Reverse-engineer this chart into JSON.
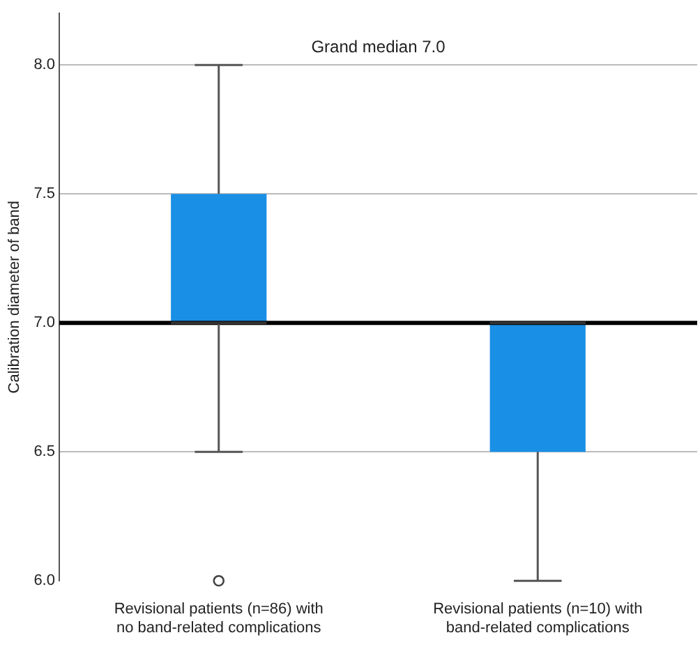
{
  "chart_data": {
    "type": "box",
    "ylabel": "Calibration diameter of band",
    "categories": [
      "Revisional patients (n=86) with no band-related complications",
      "Revisional patients (n=10) with band-related complications"
    ],
    "series": [
      {
        "color": "#1a8fe6",
        "boxes": [
          {
            "low": 6.5,
            "q1": 7.0,
            "median": 7.0,
            "q3": 7.5,
            "high": 8.0,
            "outliers": [
              6.0
            ]
          },
          {
            "low": 6.0,
            "q1": 6.5,
            "median": 7.0,
            "q3": 7.0,
            "high": 7.0
          }
        ]
      }
    ],
    "ylim": [
      6.0,
      8.2
    ],
    "yticks": [
      {
        "value": 6.0,
        "label": "6.0"
      },
      {
        "value": 6.5,
        "label": "6.5"
      },
      {
        "value": 7.0,
        "label": "7.0"
      },
      {
        "value": 7.5,
        "label": "7.5"
      },
      {
        "value": 8.0,
        "label": "8.0"
      }
    ],
    "grid": "y",
    "legend": false,
    "ref_lines": [
      {
        "axis": "y",
        "value": 7.0,
        "label": "Grand median 7.0",
        "color": "#000000"
      }
    ]
  }
}
